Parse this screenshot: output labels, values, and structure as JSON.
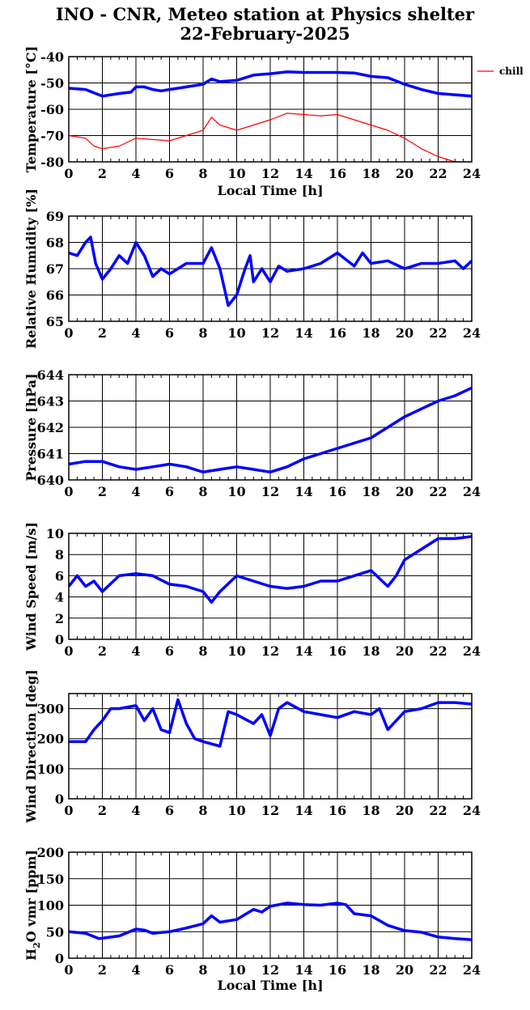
{
  "header": {
    "title_line1": "INO - CNR, Meteo station at Physics shelter",
    "title_line2": "22-February-2025"
  },
  "colors": {
    "blue": "#0000ff",
    "red": "#ff0000",
    "grid": "#000000"
  },
  "legend": {
    "chill_label": "chill"
  },
  "chart_data": [
    {
      "type": "line",
      "ylabel": "Temperature [°C]",
      "xlabel": "Local Time [h]",
      "xlim": [
        0,
        24
      ],
      "ylim": [
        -80,
        -40
      ],
      "xticks": [
        0,
        2,
        4,
        6,
        8,
        10,
        12,
        14,
        16,
        18,
        20,
        22,
        24
      ],
      "yticks": [
        -80,
        -70,
        -60,
        -50,
        -40
      ],
      "grid": true,
      "legend_position": "right",
      "series": [
        {
          "color": "#0000ff",
          "points": [
            [
              0,
              -52
            ],
            [
              1,
              -52.5
            ],
            [
              2,
              -55
            ],
            [
              3,
              -54
            ],
            [
              3.7,
              -53.5
            ],
            [
              4,
              -51.5
            ],
            [
              4.5,
              -51.5
            ],
            [
              5,
              -52.5
            ],
            [
              5.5,
              -53
            ],
            [
              6,
              -52.5
            ],
            [
              7,
              -51.5
            ],
            [
              8,
              -50.5
            ],
            [
              8.5,
              -48.5
            ],
            [
              9,
              -49.5
            ],
            [
              10,
              -49
            ],
            [
              11,
              -47
            ],
            [
              12,
              -46.5
            ],
            [
              13,
              -45.8
            ],
            [
              14,
              -46
            ],
            [
              16,
              -46
            ],
            [
              17,
              -46.2
            ],
            [
              18,
              -47.5
            ],
            [
              19,
              -48
            ],
            [
              20,
              -50.5
            ],
            [
              21,
              -52.5
            ],
            [
              22,
              -54
            ],
            [
              23,
              -54.5
            ],
            [
              24,
              -55
            ]
          ]
        },
        {
          "name": "chill",
          "color": "#ff0000",
          "points": [
            [
              0,
              -70
            ],
            [
              1,
              -71
            ],
            [
              1.5,
              -74
            ],
            [
              2,
              -75
            ],
            [
              3,
              -74
            ],
            [
              4,
              -71
            ],
            [
              5,
              -71.5
            ],
            [
              6,
              -72
            ],
            [
              7,
              -70
            ],
            [
              8,
              -68
            ],
            [
              8.5,
              -63
            ],
            [
              9,
              -66
            ],
            [
              10,
              -68
            ],
            [
              11,
              -66
            ],
            [
              12,
              -64
            ],
            [
              13,
              -61.5
            ],
            [
              14,
              -62
            ],
            [
              15,
              -62.5
            ],
            [
              16,
              -62
            ],
            [
              17,
              -64
            ],
            [
              18,
              -66
            ],
            [
              19,
              -68
            ],
            [
              20,
              -71
            ],
            [
              21,
              -75
            ],
            [
              22,
              -78
            ],
            [
              23,
              -80
            ],
            [
              24,
              -80
            ]
          ]
        }
      ]
    },
    {
      "type": "line",
      "ylabel": "Relative Humidity [%]",
      "xlim": [
        0,
        24
      ],
      "ylim": [
        65,
        69
      ],
      "xticks": [
        0,
        2,
        4,
        6,
        8,
        10,
        12,
        14,
        16,
        18,
        20,
        22,
        24
      ],
      "yticks": [
        65,
        66,
        67,
        68,
        69
      ],
      "grid": true,
      "series": [
        {
          "color": "#0000ff",
          "points": [
            [
              0,
              67.6
            ],
            [
              0.5,
              67.5
            ],
            [
              1,
              68
            ],
            [
              1.3,
              68.2
            ],
            [
              1.6,
              67.2
            ],
            [
              2,
              66.6
            ],
            [
              2.5,
              67
            ],
            [
              3,
              67.5
            ],
            [
              3.5,
              67.2
            ],
            [
              4,
              68
            ],
            [
              4.5,
              67.5
            ],
            [
              5,
              66.7
            ],
            [
              5.5,
              67
            ],
            [
              6,
              66.8
            ],
            [
              7,
              67.2
            ],
            [
              8,
              67.2
            ],
            [
              8.5,
              67.8
            ],
            [
              9,
              67
            ],
            [
              9.5,
              65.6
            ],
            [
              10,
              66
            ],
            [
              10.5,
              67
            ],
            [
              10.8,
              67.5
            ],
            [
              11,
              66.5
            ],
            [
              11.5,
              67
            ],
            [
              12,
              66.5
            ],
            [
              12.5,
              67.1
            ],
            [
              13,
              66.9
            ],
            [
              14,
              67
            ],
            [
              15,
              67.2
            ],
            [
              16,
              67.6
            ],
            [
              17,
              67.1
            ],
            [
              17.5,
              67.6
            ],
            [
              18,
              67.2
            ],
            [
              19,
              67.3
            ],
            [
              20,
              67
            ],
            [
              21,
              67.2
            ],
            [
              22,
              67.2
            ],
            [
              23,
              67.3
            ],
            [
              23.5,
              67
            ],
            [
              24,
              67.3
            ]
          ]
        }
      ]
    },
    {
      "type": "line",
      "ylabel": "Pressure [hPa]",
      "xlim": [
        0,
        24
      ],
      "ylim": [
        640,
        644
      ],
      "xticks": [
        0,
        2,
        4,
        6,
        8,
        10,
        12,
        14,
        16,
        18,
        20,
        22,
        24
      ],
      "yticks": [
        640,
        641,
        642,
        643,
        644
      ],
      "grid": true,
      "series": [
        {
          "color": "#0000ff",
          "points": [
            [
              0,
              640.6
            ],
            [
              1,
              640.7
            ],
            [
              2,
              640.7
            ],
            [
              3,
              640.5
            ],
            [
              4,
              640.4
            ],
            [
              5,
              640.5
            ],
            [
              6,
              640.6
            ],
            [
              7,
              640.5
            ],
            [
              8,
              640.3
            ],
            [
              9,
              640.4
            ],
            [
              10,
              640.5
            ],
            [
              11,
              640.4
            ],
            [
              12,
              640.3
            ],
            [
              13,
              640.5
            ],
            [
              14,
              640.8
            ],
            [
              15,
              641.0
            ],
            [
              16,
              641.2
            ],
            [
              17,
              641.4
            ],
            [
              18,
              641.6
            ],
            [
              19,
              642.0
            ],
            [
              20,
              642.4
            ],
            [
              21,
              642.7
            ],
            [
              22,
              643.0
            ],
            [
              23,
              643.2
            ],
            [
              24,
              643.5
            ]
          ]
        }
      ]
    },
    {
      "type": "line",
      "ylabel": "Wind Speed [m/s]",
      "xlim": [
        0,
        24
      ],
      "ylim": [
        0,
        10
      ],
      "xticks": [
        0,
        2,
        4,
        6,
        8,
        10,
        12,
        14,
        16,
        18,
        20,
        22,
        24
      ],
      "yticks": [
        0,
        2,
        4,
        6,
        8,
        10
      ],
      "grid": true,
      "series": [
        {
          "color": "#0000ff",
          "points": [
            [
              0,
              5
            ],
            [
              0.5,
              6
            ],
            [
              1,
              5
            ],
            [
              1.5,
              5.5
            ],
            [
              2,
              4.5
            ],
            [
              3,
              6
            ],
            [
              4,
              6.2
            ],
            [
              5,
              6
            ],
            [
              6,
              5.2
            ],
            [
              7,
              5
            ],
            [
              8,
              4.5
            ],
            [
              8.5,
              3.5
            ],
            [
              9,
              4.5
            ],
            [
              10,
              6
            ],
            [
              11,
              5.5
            ],
            [
              12,
              5
            ],
            [
              13,
              4.8
            ],
            [
              14,
              5
            ],
            [
              15,
              5.5
            ],
            [
              16,
              5.5
            ],
            [
              17,
              6
            ],
            [
              18,
              6.5
            ],
            [
              19,
              5
            ],
            [
              19.5,
              6
            ],
            [
              20,
              7.5
            ],
            [
              21,
              8.5
            ],
            [
              22,
              9.5
            ],
            [
              23,
              9.5
            ],
            [
              24,
              9.7
            ]
          ]
        }
      ]
    },
    {
      "type": "line",
      "ylabel": "Wind Direction [deg]",
      "xlim": [
        0,
        24
      ],
      "ylim": [
        0,
        350
      ],
      "xticks": [
        0,
        2,
        4,
        6,
        8,
        10,
        12,
        14,
        16,
        18,
        20,
        22,
        24
      ],
      "yticks": [
        0,
        100,
        200,
        300
      ],
      "grid": true,
      "series": [
        {
          "color": "#0000ff",
          "points": [
            [
              0,
              190
            ],
            [
              1,
              190
            ],
            [
              1.5,
              230
            ],
            [
              2,
              260
            ],
            [
              2.5,
              300
            ],
            [
              3,
              300
            ],
            [
              4,
              310
            ],
            [
              4.5,
              260
            ],
            [
              5,
              300
            ],
            [
              5.5,
              230
            ],
            [
              6,
              220
            ],
            [
              6.5,
              330
            ],
            [
              7,
              250
            ],
            [
              7.5,
              200
            ],
            [
              8,
              190
            ],
            [
              9,
              175
            ],
            [
              9.5,
              290
            ],
            [
              10,
              280
            ],
            [
              11,
              250
            ],
            [
              11.5,
              280
            ],
            [
              12,
              210
            ],
            [
              12.5,
              300
            ],
            [
              13,
              320
            ],
            [
              14,
              290
            ],
            [
              15,
              280
            ],
            [
              16,
              270
            ],
            [
              17,
              290
            ],
            [
              18,
              280
            ],
            [
              18.5,
              300
            ],
            [
              19,
              230
            ],
            [
              20,
              290
            ],
            [
              21,
              300
            ],
            [
              22,
              320
            ],
            [
              23,
              320
            ],
            [
              24,
              315
            ]
          ]
        }
      ]
    },
    {
      "type": "line",
      "ylabel": "H2O vmr [ppm]",
      "xlabel": "Local Time [h]",
      "xlim": [
        0,
        24
      ],
      "ylim": [
        0,
        200
      ],
      "xticks": [
        0,
        2,
        4,
        6,
        8,
        10,
        12,
        14,
        16,
        18,
        20,
        22,
        24
      ],
      "yticks": [
        0,
        50,
        100,
        150,
        200
      ],
      "grid": true,
      "series": [
        {
          "color": "#0000ff",
          "points": [
            [
              0,
              50
            ],
            [
              1,
              47
            ],
            [
              1.8,
              37
            ],
            [
              3,
              42
            ],
            [
              4,
              55
            ],
            [
              4.5,
              53
            ],
            [
              5,
              47
            ],
            [
              6,
              50
            ],
            [
              7,
              57
            ],
            [
              8,
              65
            ],
            [
              8.5,
              80
            ],
            [
              9,
              68
            ],
            [
              10,
              73
            ],
            [
              11,
              92
            ],
            [
              11.5,
              87
            ],
            [
              12,
              98
            ],
            [
              13,
              104
            ],
            [
              14,
              101
            ],
            [
              15,
              100
            ],
            [
              16,
              104
            ],
            [
              16.5,
              101
            ],
            [
              17,
              84
            ],
            [
              18,
              80
            ],
            [
              19,
              62
            ],
            [
              20,
              52
            ],
            [
              21,
              49
            ],
            [
              22,
              40
            ],
            [
              23,
              37
            ],
            [
              24,
              35
            ]
          ]
        }
      ]
    }
  ]
}
